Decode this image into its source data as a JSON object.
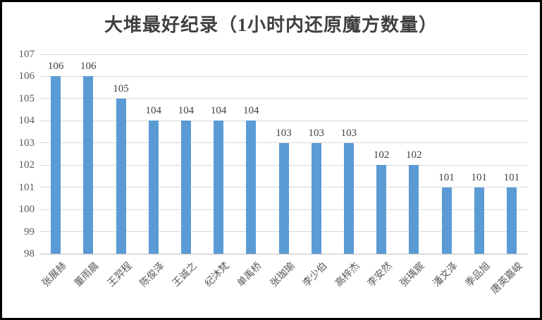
{
  "chart_data": {
    "type": "bar",
    "title": "大堆最好纪录（1小时内还原魔方数量）",
    "categories": [
      "张展赫",
      "董雨晨",
      "王羿程",
      "陈俊泽",
      "王诚之",
      "纪沐梵",
      "单禹桥",
      "张珈瑜",
      "李少伯",
      "高梓杰",
      "李安然",
      "张瑀宸",
      "潘文泽",
      "季品旭",
      "唐英嘉峻"
    ],
    "values": [
      106,
      106,
      105,
      104,
      104,
      104,
      104,
      103,
      103,
      103,
      102,
      102,
      101,
      101,
      101
    ],
    "xlabel": "",
    "ylabel": "",
    "ylim": [
      98,
      107
    ],
    "yticks": [
      98,
      99,
      100,
      101,
      102,
      103,
      104,
      105,
      106,
      107
    ],
    "grid": true,
    "legend": "none",
    "data_labels": true,
    "bar_color": "#5b9bd5",
    "gridline_color": "#d9d9d9",
    "axis_label_color": "#595959",
    "data_label_color": "#404040",
    "title_color": "#404040"
  }
}
